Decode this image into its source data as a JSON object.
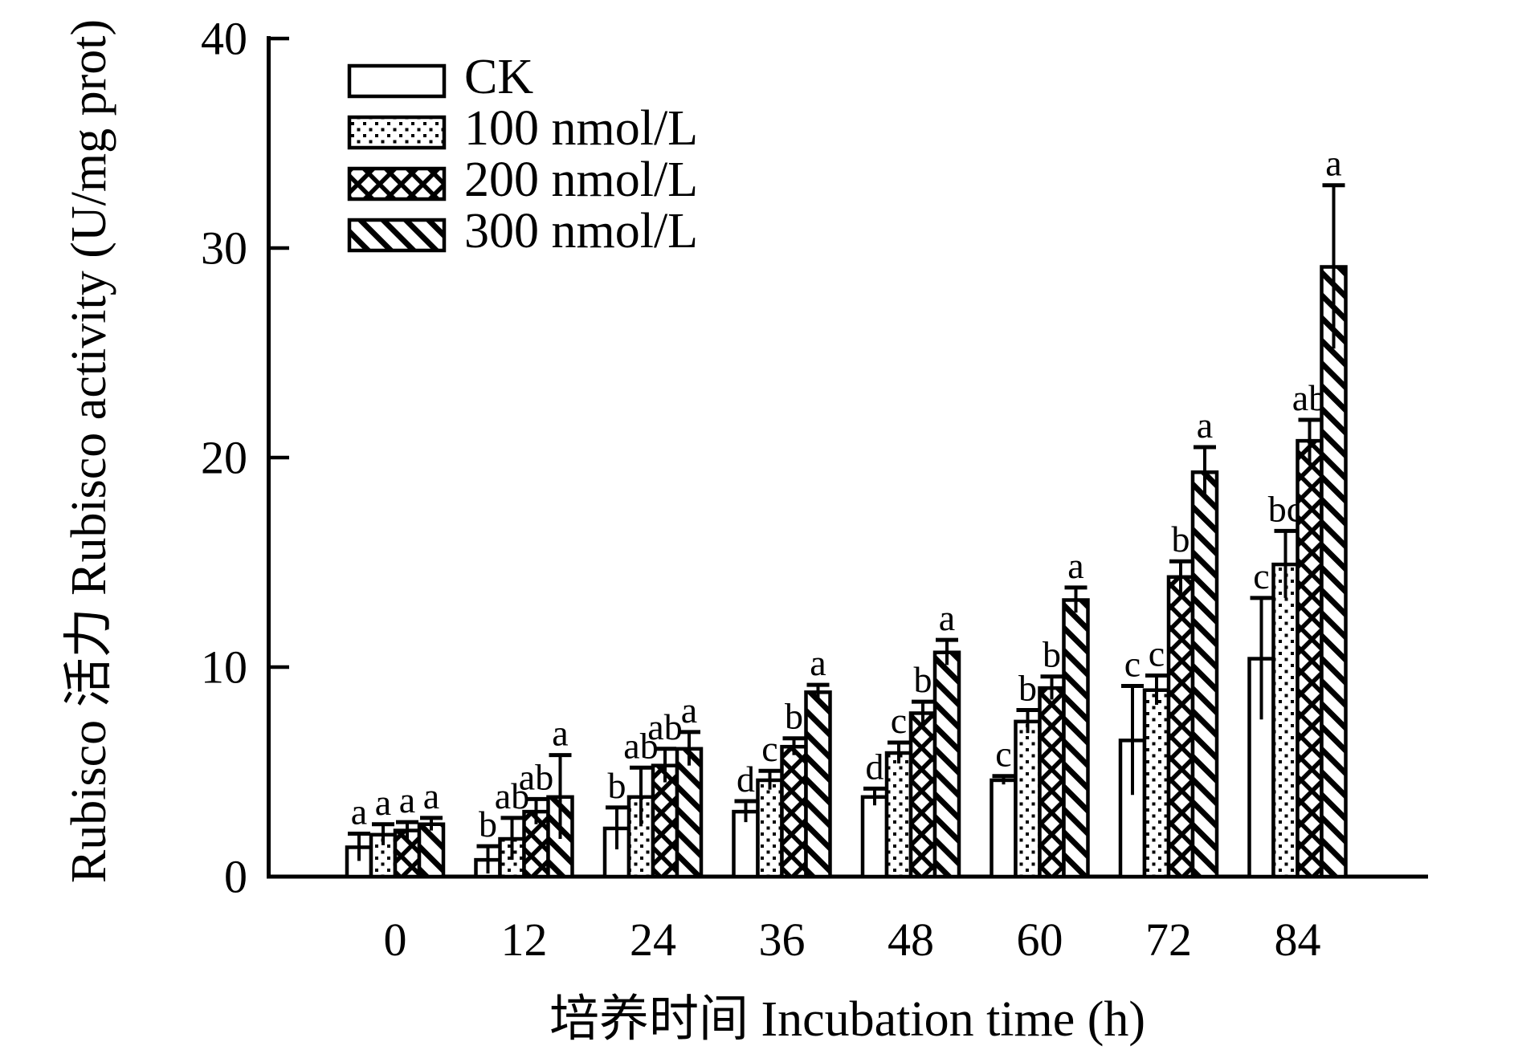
{
  "colors": {
    "foreground": "#000000",
    "background": "#ffffff"
  },
  "axes": {
    "x_title": "培养时间 Incubation time (h)",
    "y_title": "Rubisco 活力 Rubisco activity (U/mg prot)",
    "y_ticks": [
      0,
      10,
      20,
      30,
      40
    ],
    "x_tick_labels": [
      "0",
      "12",
      "24",
      "36",
      "48",
      "60",
      "72",
      "84"
    ]
  },
  "chart_data": {
    "type": "bar",
    "title": "",
    "xlabel": "培养时间 Incubation time (h)",
    "ylabel": "Rubisco 活力 Rubisco activity (U/mg prot)",
    "categories": [
      "0",
      "12",
      "24",
      "36",
      "48",
      "60",
      "72",
      "84"
    ],
    "ylim": [
      0,
      40
    ],
    "yticks": [
      0,
      10,
      20,
      30,
      40
    ],
    "grid": false,
    "legend_position": "inside-top-left",
    "error_bars": "upper-cap-symmetric",
    "series": [
      {
        "name": "CK",
        "pattern": "plain-white",
        "values": [
          1.4,
          0.8,
          2.3,
          3.1,
          3.8,
          4.6,
          6.5,
          10.4
        ],
        "errors": [
          0.65,
          0.65,
          1.0,
          0.5,
          0.4,
          0.2,
          2.6,
          2.9
        ],
        "letters": [
          "a",
          "b",
          "b",
          "d",
          "d",
          "c",
          "c",
          "c"
        ]
      },
      {
        "name": "100 nmol/L",
        "pattern": "dots",
        "values": [
          2.0,
          1.8,
          3.8,
          4.6,
          5.9,
          7.4,
          8.9,
          14.9
        ],
        "errors": [
          0.5,
          1.0,
          1.4,
          0.45,
          0.5,
          0.55,
          0.7,
          1.6
        ],
        "letters": [
          "a",
          "ab",
          "ab",
          "c",
          "c",
          "b",
          "c",
          "bc"
        ]
      },
      {
        "name": "200 nmol/L",
        "pattern": "crosshatch",
        "values": [
          2.2,
          3.1,
          5.3,
          6.2,
          7.8,
          9.0,
          14.3,
          20.8
        ],
        "errors": [
          0.4,
          0.6,
          0.8,
          0.4,
          0.55,
          0.55,
          0.75,
          1.0
        ],
        "letters": [
          "a",
          "ab",
          "ab",
          "b",
          "b",
          "b",
          "b",
          "ab"
        ]
      },
      {
        "name": "300 nmol/L",
        "pattern": "diagonal-up",
        "values": [
          2.5,
          3.8,
          6.1,
          8.8,
          10.7,
          13.2,
          19.3,
          29.1
        ],
        "errors": [
          0.3,
          2.0,
          0.8,
          0.35,
          0.6,
          0.6,
          1.2,
          3.9
        ],
        "letters": [
          "a",
          "a",
          "a",
          "a",
          "a",
          "a",
          "a",
          "a"
        ]
      }
    ]
  }
}
